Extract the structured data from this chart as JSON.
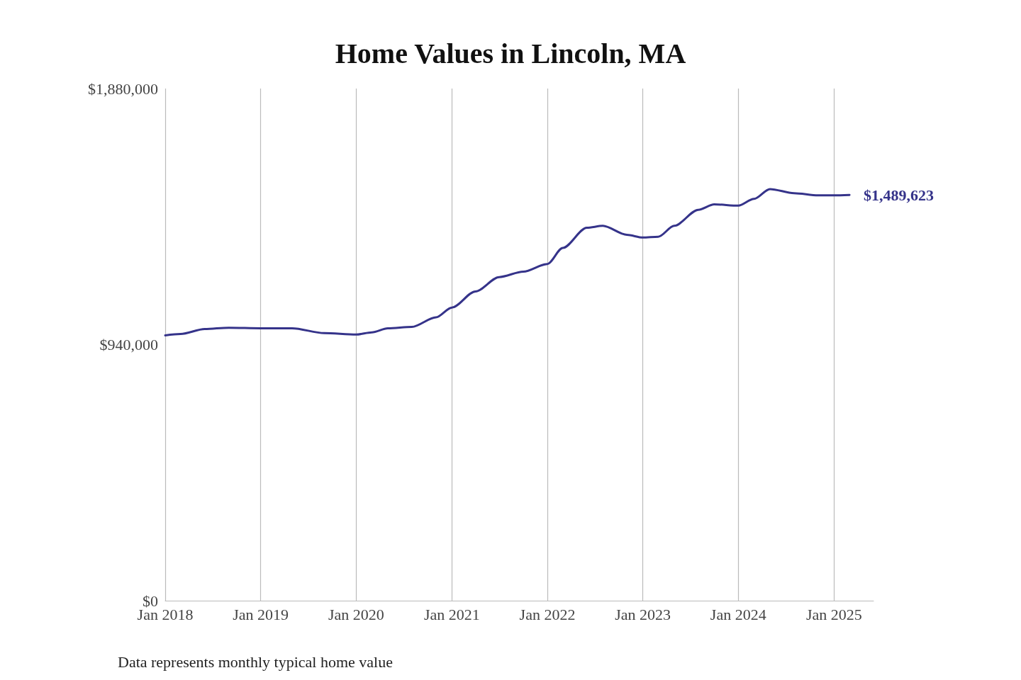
{
  "chart_data": {
    "type": "line",
    "title": "Home Values in Lincoln, MA",
    "x": [
      "2018-01",
      "2018-03",
      "2018-06",
      "2018-09",
      "2019-01",
      "2019-05",
      "2019-09",
      "2020-01",
      "2020-03",
      "2020-05",
      "2020-08",
      "2020-11",
      "2021-01",
      "2021-04",
      "2021-07",
      "2021-10",
      "2022-01",
      "2022-03",
      "2022-06",
      "2022-08",
      "2022-11",
      "2023-01",
      "2023-03",
      "2023-05",
      "2023-08",
      "2023-10",
      "2024-01",
      "2024-03",
      "2024-05",
      "2024-08",
      "2024-11",
      "2025-01",
      "2025-03"
    ],
    "series": [
      {
        "color": "#35338a",
        "values": [
          974000,
          979000,
          997000,
          1002000,
          1000000,
          1000000,
          982000,
          977000,
          985000,
          1000000,
          1005000,
          1040000,
          1076000,
          1135000,
          1188000,
          1208000,
          1236000,
          1295000,
          1369000,
          1376000,
          1343000,
          1333000,
          1336000,
          1376000,
          1435000,
          1455000,
          1450000,
          1475000,
          1511000,
          1496000,
          1488000,
          1488000,
          1489623
        ]
      }
    ],
    "xlim": [
      "2018-01",
      "2025-06"
    ],
    "xticks": [
      {
        "value": "2018-01",
        "label": "Jan 2018"
      },
      {
        "value": "2019-01",
        "label": "Jan 2019"
      },
      {
        "value": "2020-01",
        "label": "Jan 2020"
      },
      {
        "value": "2021-01",
        "label": "Jan 2021"
      },
      {
        "value": "2022-01",
        "label": "Jan 2022"
      },
      {
        "value": "2023-01",
        "label": "Jan 2023"
      },
      {
        "value": "2024-01",
        "label": "Jan 2024"
      },
      {
        "value": "2025-01",
        "label": "Jan 2025"
      }
    ],
    "ylim": [
      0,
      1880000
    ],
    "yticks": [
      {
        "value": 0,
        "label": "$0"
      },
      {
        "value": 940000,
        "label": "$940,000"
      },
      {
        "value": 1880000,
        "label": "$1,880,000"
      }
    ],
    "grid": "x",
    "marker": "none",
    "line_style": "solid",
    "annotations": [
      {
        "text": "$1,489,623",
        "x": "2025-03",
        "y": 1489623
      },
      "Data represents monthly typical home value"
    ]
  }
}
